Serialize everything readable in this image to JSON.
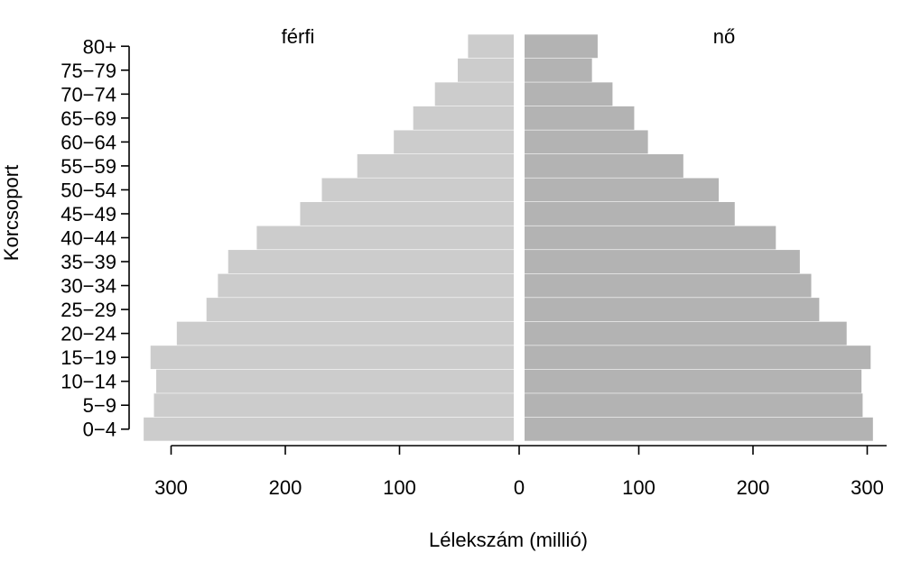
{
  "chart_data": {
    "type": "bar",
    "orientation": "horizontal",
    "layout": "population-pyramid",
    "xlabel": "Lélekszám (millió)",
    "ylabel": "Korcsoport",
    "categories": [
      "0−4",
      "5−9",
      "10−14",
      "15−19",
      "20−24",
      "25−29",
      "30−34",
      "35−39",
      "40−44",
      "45−49",
      "50−54",
      "55−59",
      "60−64",
      "65−69",
      "70−74",
      "75−79",
      "80+"
    ],
    "xlim": [
      -325,
      325
    ],
    "xticks": [
      -300,
      -200,
      -100,
      0,
      100,
      200,
      300
    ],
    "xtick_labels": [
      "300",
      "200",
      "100",
      "0",
      "100",
      "200",
      "300"
    ],
    "series": [
      {
        "name": "férfi",
        "side": "left",
        "color": "#cccccc",
        "values": [
          324,
          315,
          313,
          318,
          295,
          269,
          259,
          250,
          225,
          187,
          168,
          137,
          105,
          88,
          69,
          49,
          40
        ]
      },
      {
        "name": "nő",
        "side": "right",
        "color": "#b3b3b3",
        "values": [
          305,
          296,
          295,
          303,
          282,
          258,
          251,
          241,
          220,
          184,
          170,
          139,
          108,
          96,
          77,
          59,
          64
        ]
      }
    ],
    "grid": false,
    "legend": "none"
  }
}
